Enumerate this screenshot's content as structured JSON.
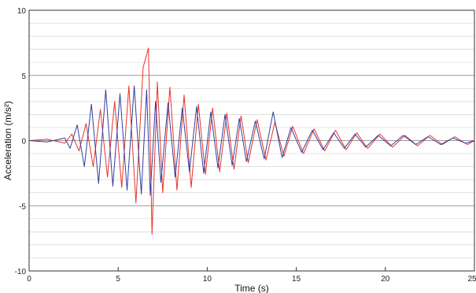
{
  "chart_data": {
    "type": "line",
    "xlabel": "Time (s)",
    "ylabel": "Acceleration (m/s²)",
    "xlim": [
      0,
      25
    ],
    "ylim": [
      -10,
      10
    ],
    "xticks": [
      0,
      5,
      10,
      15,
      20,
      25
    ],
    "xtick_labels": [
      "0",
      "5",
      "10",
      "15",
      "20",
      "25"
    ],
    "yticks": [
      -10,
      -5,
      0,
      5,
      10
    ],
    "ytick_labels": [
      "-10",
      "-5",
      "0",
      "5",
      "10"
    ],
    "grid": true,
    "legend": "none",
    "series": [
      {
        "color": "#e8332a",
        "x": [
          0,
          1,
          2,
          2.4,
          2.8,
          3.2,
          3.6,
          4.0,
          4.4,
          4.8,
          5.2,
          5.6,
          6.0,
          6.4,
          6.7,
          6.9,
          7.2,
          7.5,
          7.9,
          8.3,
          8.7,
          9.1,
          9.5,
          9.9,
          10.3,
          10.7,
          11.1,
          11.5,
          11.9,
          12.3,
          12.8,
          13.3,
          13.8,
          14.3,
          14.8,
          15.4,
          16.0,
          16.6,
          17.2,
          17.8,
          18.4,
          19.0,
          19.7,
          20.4,
          21.1,
          21.8,
          22.5,
          23.2,
          23.9,
          24.6,
          25
        ],
        "y": [
          0,
          0.1,
          -0.2,
          0.5,
          -0.8,
          1.3,
          -2.0,
          2.4,
          -2.8,
          3.0,
          -3.6,
          4.2,
          -4.8,
          5.6,
          7.1,
          -7.2,
          4.5,
          -4.0,
          4.1,
          -3.8,
          3.5,
          -3.6,
          2.8,
          -2.6,
          2.5,
          -2.4,
          2.1,
          -2.2,
          1.9,
          -1.7,
          1.6,
          -1.5,
          1.4,
          -1.2,
          1.1,
          -1.0,
          0.9,
          -0.8,
          0.8,
          -0.7,
          0.6,
          -0.6,
          0.5,
          -0.5,
          0.4,
          -0.4,
          0.4,
          -0.3,
          0.3,
          -0.3,
          0
        ]
      },
      {
        "color": "#2f3f9f",
        "x": [
          0,
          1,
          2,
          2.3,
          2.7,
          3.1,
          3.5,
          3.9,
          4.3,
          4.7,
          5.1,
          5.5,
          5.9,
          6.3,
          6.6,
          6.8,
          7.1,
          7.4,
          7.8,
          8.2,
          8.6,
          9.0,
          9.4,
          9.8,
          10.2,
          10.6,
          11.0,
          11.4,
          11.8,
          12.2,
          12.7,
          13.2,
          13.7,
          14.2,
          14.7,
          15.3,
          15.9,
          16.5,
          17.1,
          17.7,
          18.3,
          18.9,
          19.6,
          20.3,
          21.0,
          21.7,
          22.4,
          23.1,
          23.8,
          24.5,
          25
        ],
        "y": [
          0,
          -0.1,
          0.2,
          -0.6,
          1.2,
          -2.0,
          2.8,
          -3.3,
          3.9,
          -3.5,
          3.6,
          -3.8,
          4.2,
          -4.1,
          3.9,
          -4.2,
          3.0,
          -3.2,
          2.9,
          -2.8,
          2.5,
          -2.4,
          2.6,
          -2.5,
          2.2,
          -2.1,
          2.0,
          -1.9,
          1.7,
          -1.6,
          1.5,
          -1.4,
          2.2,
          -1.3,
          1.0,
          -0.9,
          0.8,
          -0.7,
          0.6,
          -0.6,
          0.5,
          -0.5,
          0.4,
          -0.4,
          0.4,
          -0.3,
          0.3,
          -0.3,
          0.2,
          -0.2,
          0
        ]
      }
    ]
  }
}
